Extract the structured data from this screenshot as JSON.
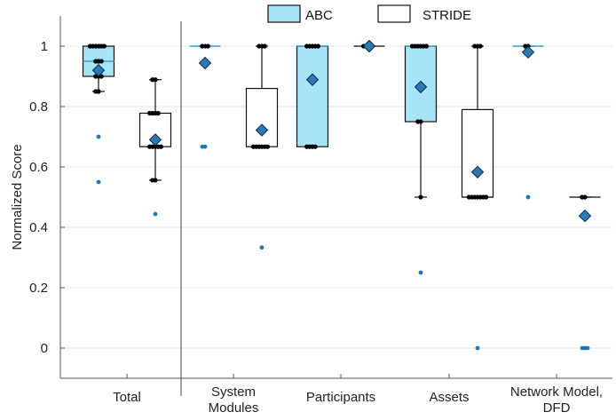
{
  "chart_data": {
    "type": "box",
    "ylabel": "Normalized Score",
    "ylim": [
      -0.1,
      1.1
    ],
    "yticks": [
      0,
      0.2,
      0.4,
      0.6,
      0.8,
      1
    ],
    "ytick_labels": [
      "0",
      "0.2",
      "0.4",
      "0.6",
      "0.8",
      "1"
    ],
    "grid": "horizontal",
    "legend": {
      "placement": "top-center",
      "entries": [
        {
          "label": "ABC",
          "color": "#a8e4f8"
        },
        {
          "label": "STRIDE",
          "color": "#ffffff"
        }
      ]
    },
    "categories": [
      {
        "label": "Total",
        "lines": [
          "Total"
        ]
      },
      {
        "label": "System Modules",
        "lines": [
          "System",
          "Modules"
        ]
      },
      {
        "label": "Participants",
        "lines": [
          "Participants"
        ]
      },
      {
        "label": "Assets",
        "lines": [
          "Assets"
        ]
      },
      {
        "label": "Network Model, DFD",
        "lines": [
          "Network Model,",
          "DFD"
        ]
      }
    ],
    "colors": {
      "abc_fill": "#a8e4f8",
      "stride_fill": "#ffffff",
      "mean_marker": "#2a7ab8",
      "outlier": "#1f77b4",
      "point": "#000000",
      "median": "#3a9fd0"
    },
    "series": [
      {
        "name": "ABC",
        "boxes": [
          {
            "category": "Total",
            "q1": 0.9,
            "median": 0.95,
            "q3": 1.0,
            "whisker_low": 0.85,
            "whisker_high": 1.0,
            "mean": 0.92,
            "points": [
              1,
              1,
              1,
              1,
              1,
              1,
              0.95,
              0.95,
              0.95,
              0.9,
              0.9,
              0.9,
              0.85,
              0.85
            ],
            "outliers": [
              0.7,
              0.55
            ]
          },
          {
            "category": "System Modules",
            "q1": 1.0,
            "median": 1.0,
            "q3": 1.0,
            "whisker_low": 1.0,
            "whisker_high": 1.0,
            "mean": 0.944,
            "points": [
              1,
              1,
              1
            ],
            "outliers": [
              0.667,
              0.667
            ]
          },
          {
            "category": "Participants",
            "q1": 0.667,
            "median": 1.0,
            "q3": 1.0,
            "whisker_low": 0.667,
            "whisker_high": 1.0,
            "mean": 0.889,
            "points": [
              1,
              1,
              1,
              1,
              1,
              0.667,
              0.667,
              0.667,
              0.667
            ],
            "outliers": []
          },
          {
            "category": "Assets",
            "q1": 0.75,
            "median": 1.0,
            "q3": 1.0,
            "whisker_low": 0.5,
            "whisker_high": 1.0,
            "mean": 0.865,
            "points": [
              1,
              1,
              1,
              1,
              1,
              1,
              0.75,
              0.75,
              0.5
            ],
            "outliers": [
              0.25
            ]
          },
          {
            "category": "Network Model, DFD",
            "q1": 1.0,
            "median": 1.0,
            "q3": 1.0,
            "whisker_low": 1.0,
            "whisker_high": 1.0,
            "mean": 0.98,
            "points": [
              1,
              1
            ],
            "outliers": [
              0.5
            ]
          }
        ]
      },
      {
        "name": "STRIDE",
        "boxes": [
          {
            "category": "Total",
            "q1": 0.667,
            "median": 0.667,
            "q3": 0.778,
            "whisker_low": 0.556,
            "whisker_high": 0.889,
            "mean": 0.69,
            "points": [
              0.889,
              0.889,
              0.778,
              0.778,
              0.778,
              0.778,
              0.667,
              0.667,
              0.667,
              0.667,
              0.667,
              0.556,
              0.556
            ],
            "outliers": [
              0.444
            ]
          },
          {
            "category": "System Modules",
            "q1": 0.667,
            "median": 0.667,
            "q3": 0.86,
            "whisker_low": 0.667,
            "whisker_high": 1.0,
            "mean": 0.722,
            "points": [
              1,
              1,
              1,
              0.667,
              0.667,
              0.667,
              0.667,
              0.667,
              0.667
            ],
            "outliers": [
              0.333
            ]
          },
          {
            "category": "Participants",
            "q1": 1.0,
            "median": 1.0,
            "q3": 1.0,
            "whisker_low": 1.0,
            "whisker_high": 1.0,
            "mean": 1.0,
            "points": [
              1,
              1,
              1,
              1
            ],
            "outliers": []
          },
          {
            "category": "Assets",
            "q1": 0.5,
            "median": 0.5,
            "q3": 0.79,
            "whisker_low": 0.5,
            "whisker_high": 1.0,
            "mean": 0.583,
            "points": [
              1,
              1,
              1,
              0.5,
              0.5,
              0.5,
              0.5,
              0.5,
              0.5,
              0.5
            ],
            "outliers": [
              0
            ]
          },
          {
            "category": "Network Model, DFD",
            "q1": 0.5,
            "median": 0.5,
            "q3": 0.5,
            "whisker_low": 0.5,
            "whisker_high": 0.5,
            "mean": 0.438,
            "points": [
              0.5,
              0.5
            ],
            "outliers": [
              0,
              0,
              0
            ]
          }
        ]
      }
    ]
  }
}
